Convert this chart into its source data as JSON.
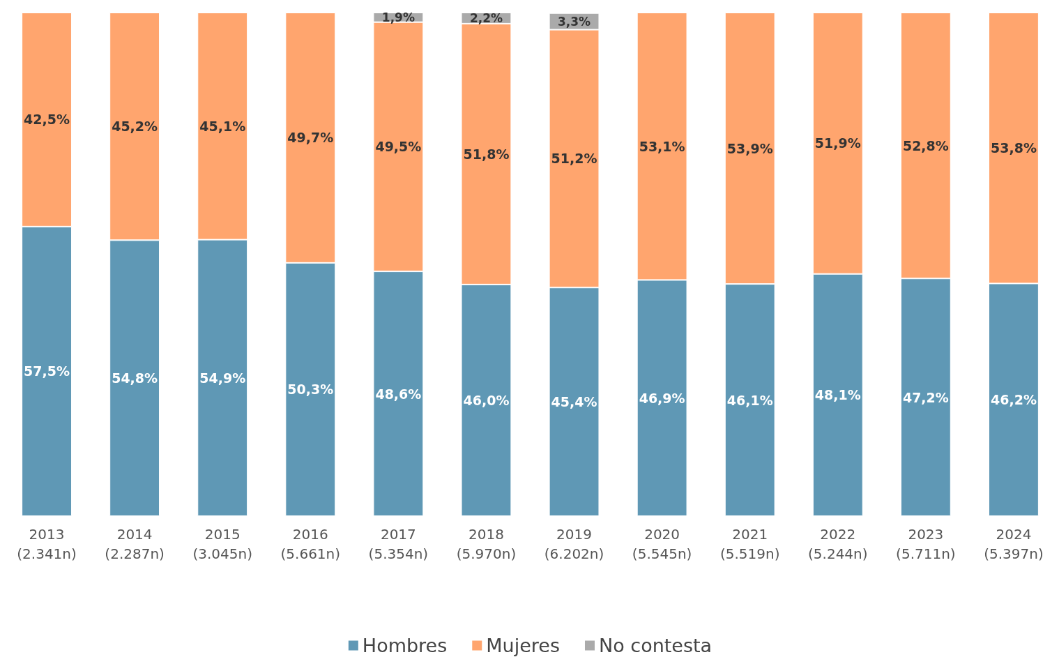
{
  "chart_data": {
    "type": "bar",
    "stacked": true,
    "legend": "bottom",
    "categories": [
      "2013\n(2.341n)",
      "2014\n(2.287n)",
      "2015\n(3.045n)",
      "2016\n(5.661n)",
      "2017\n(5.354n)",
      "2018\n(5.970n)",
      "2019\n(6.202n)",
      "2020\n(5.545n)",
      "2021\n(5.519n)",
      "2022\n(5.244n)",
      "2023\n(5.711n)",
      "2024\n(5.397n)"
    ],
    "series": [
      {
        "name": "Hombres",
        "color": "#5f98b5",
        "values": [
          57.5,
          54.8,
          54.9,
          50.3,
          48.6,
          46.0,
          45.4,
          46.9,
          46.1,
          48.1,
          47.2,
          46.2
        ],
        "value_labels": [
          "57,5%",
          "54,8%",
          "54,9%",
          "50,3%",
          "48,6%",
          "46,0%",
          "45,4%",
          "46,9%",
          "46,1%",
          "48,1%",
          "47,2%",
          "46,2%"
        ]
      },
      {
        "name": "Mujeres",
        "color": "#ffa56e",
        "values": [
          42.5,
          45.2,
          45.1,
          49.7,
          49.5,
          51.8,
          51.2,
          53.1,
          53.9,
          51.9,
          52.8,
          53.8
        ],
        "value_labels": [
          "42,5%",
          "45,2%",
          "45,1%",
          "49,7%",
          "49,5%",
          "51,8%",
          "51,2%",
          "53,1%",
          "53,9%",
          "51,9%",
          "52,8%",
          "53,8%"
        ]
      },
      {
        "name": "No contesta",
        "color": "#aaaaaa",
        "values": [
          null,
          null,
          null,
          null,
          1.9,
          2.2,
          3.3,
          null,
          null,
          null,
          null,
          null
        ],
        "value_labels": [
          null,
          null,
          null,
          null,
          "1,9%",
          "2,2%",
          "3,3%",
          null,
          null,
          null,
          null,
          null
        ]
      }
    ]
  }
}
